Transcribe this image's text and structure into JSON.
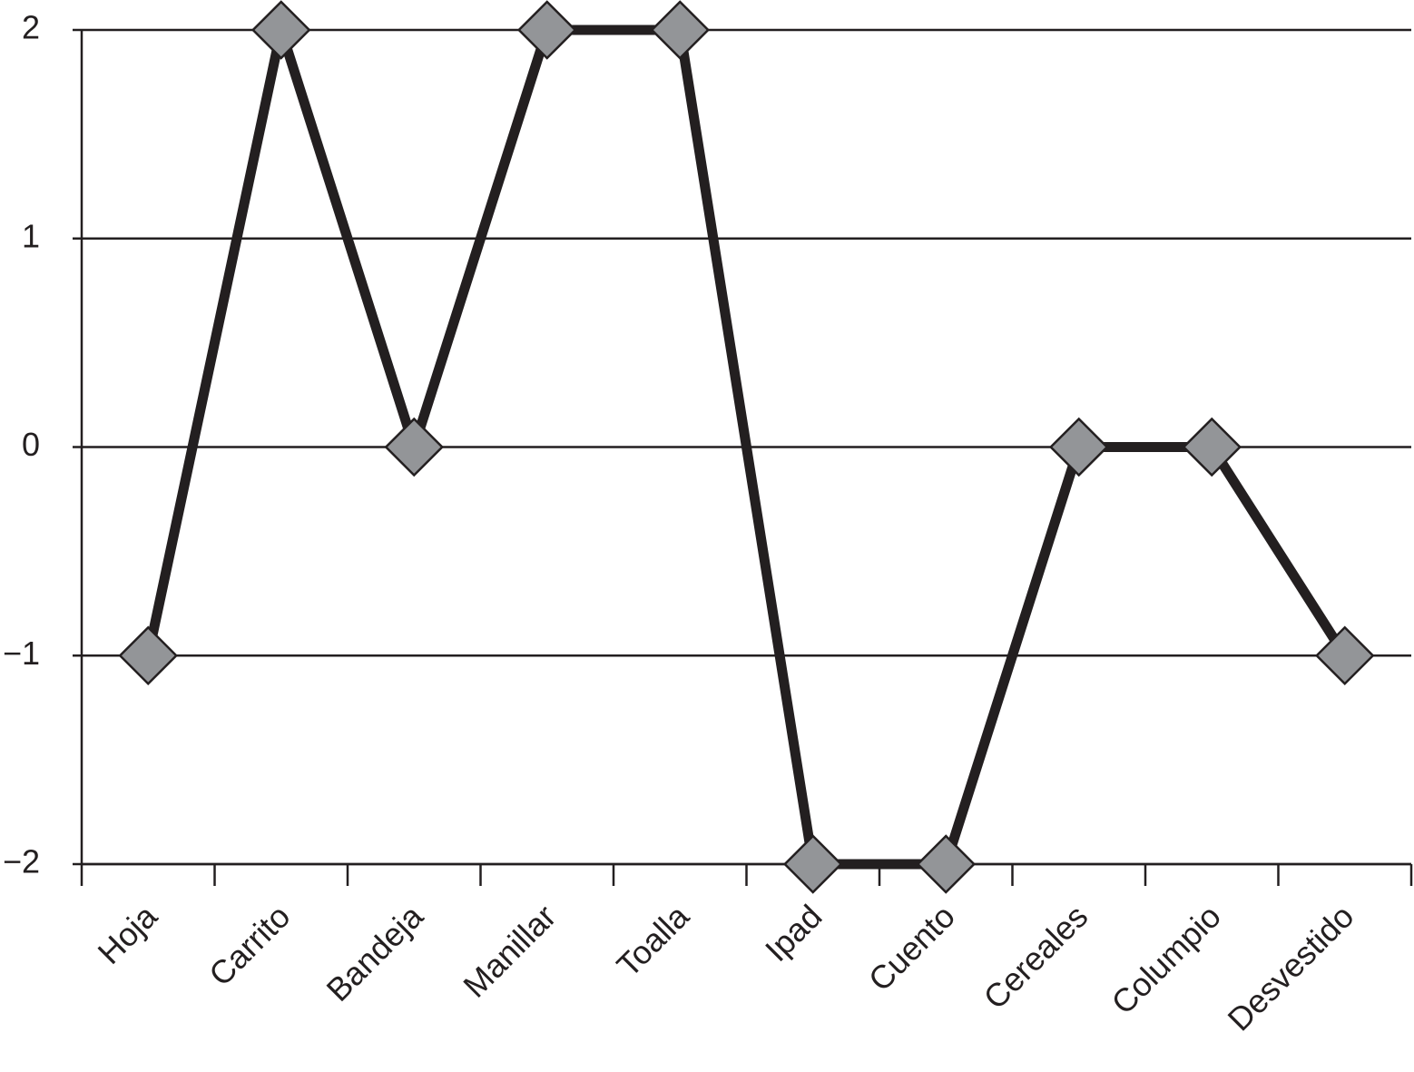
{
  "chart_data": {
    "type": "line",
    "categories": [
      "Hoja",
      "Carrito",
      "Bandeja",
      "Manillar",
      "Toalla",
      "Ipad",
      "Cuento",
      "Cereales",
      "Columpio",
      "Desvestido"
    ],
    "values": [
      -1,
      2,
      0,
      2,
      2,
      -2,
      -2,
      0,
      0,
      -1
    ],
    "color": "#231f20",
    "marker_color": "#939598",
    "ylim": [
      -2,
      2
    ],
    "yticks": [
      {
        "value": -2,
        "label": "−2"
      },
      {
        "value": -1,
        "label": "−1"
      },
      0,
      1,
      2
    ],
    "grid": true
  }
}
